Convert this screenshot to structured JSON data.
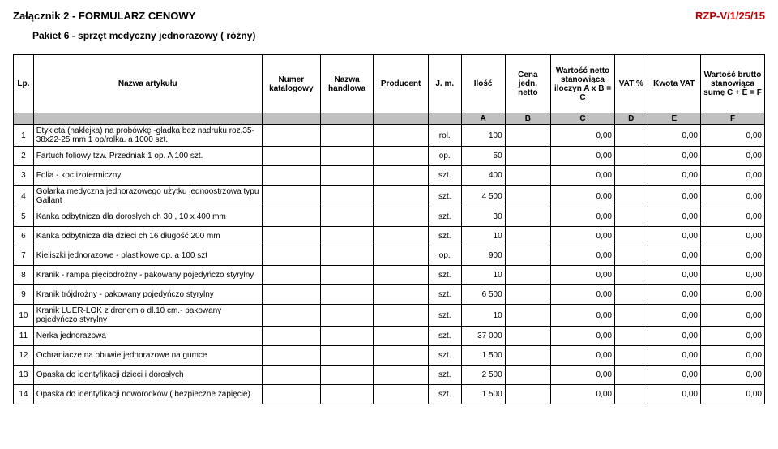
{
  "header": {
    "attachment": "Załącznik 2  -  FORMULARZ CENOWY",
    "ref": "RZP-V/1/25/15",
    "package": "Pakiet 6 - sprzęt medyczny jednorazowy ( różny)"
  },
  "table": {
    "columns": [
      "Lp.",
      "Nazwa artykułu",
      "Numer katalogowy",
      "Nazwa handlowa",
      "Producent",
      "J. m.",
      "Ilość",
      "Cena jedn. netto",
      "Wartość netto stanowiąca iloczyn A x B = C",
      "VAT %",
      "Kwota VAT",
      "Wartość brutto stanowiąca sumę C + E = F"
    ],
    "letter_row": [
      "",
      "",
      "",
      "",
      "",
      "",
      "A",
      "B",
      "C",
      "D",
      "E",
      "F"
    ],
    "rows": [
      {
        "lp": "1",
        "name": "Etykieta (naklejka) na probówkę -gładka bez nadruku roz.35-38x22-25 mm 1 op/rolka. a 1000 szt.",
        "jm": "rol.",
        "ilosc": "100",
        "wn": "0,00",
        "kvat": "0,00",
        "wb": "0,00"
      },
      {
        "lp": "2",
        "name": "Fartuch foliowy tzw. Przedniak 1 op. A 100 szt.",
        "jm": "op.",
        "ilosc": "50",
        "wn": "0,00",
        "kvat": "0,00",
        "wb": "0,00"
      },
      {
        "lp": "3",
        "name": "Folia - koc izotermiczny",
        "jm": "szt.",
        "ilosc": "400",
        "wn": "0,00",
        "kvat": "0,00",
        "wb": "0,00"
      },
      {
        "lp": "4",
        "name": "Golarka medyczna jednorazowego użytku jednoostrzowa typu Gallant",
        "jm": "szt.",
        "ilosc": "4 500",
        "wn": "0,00",
        "kvat": "0,00",
        "wb": "0,00"
      },
      {
        "lp": "5",
        "name": "Kanka odbytnicza dla dorosłych ch 30 , 10 x 400 mm",
        "jm": "szt.",
        "ilosc": "30",
        "wn": "0,00",
        "kvat": "0,00",
        "wb": "0,00"
      },
      {
        "lp": "6",
        "name": "Kanka odbytnicza dla dzieci ch 16 długość 200 mm",
        "jm": "szt.",
        "ilosc": "10",
        "wn": "0,00",
        "kvat": "0,00",
        "wb": "0,00"
      },
      {
        "lp": "7",
        "name": "Kieliszki jednorazowe - plastikowe op. a 100 szt",
        "jm": "op.",
        "ilosc": "900",
        "wn": "0,00",
        "kvat": "0,00",
        "wb": "0,00"
      },
      {
        "lp": "8",
        "name": "Kranik - rampa pięciodrożny - pakowany pojedyńczo styrylny",
        "jm": "szt.",
        "ilosc": "10",
        "wn": "0,00",
        "kvat": "0,00",
        "wb": "0,00"
      },
      {
        "lp": "9",
        "name": "Kranik trójdrożny - pakowany pojedyńczo styrylny",
        "jm": "szt.",
        "ilosc": "6 500",
        "wn": "0,00",
        "kvat": "0,00",
        "wb": "0,00"
      },
      {
        "lp": "10",
        "name": "Kranik LUER-LOK z drenem o dł.10 cm.- pakowany pojedyńczo styrylny",
        "jm": "szt.",
        "ilosc": "10",
        "wn": "0,00",
        "kvat": "0,00",
        "wb": "0,00"
      },
      {
        "lp": "11",
        "name": "Nerka jednorazowa",
        "jm": "szt.",
        "ilosc": "37 000",
        "wn": "0,00",
        "kvat": "0,00",
        "wb": "0,00"
      },
      {
        "lp": "12",
        "name": "Ochraniacze na obuwie jednorazowe na gumce",
        "jm": "szt.",
        "ilosc": "1 500",
        "wn": "0,00",
        "kvat": "0,00",
        "wb": "0,00"
      },
      {
        "lp": "13",
        "name": "Opaska do identyfikacji dzieci i dorosłych",
        "jm": "szt.",
        "ilosc": "2 500",
        "wn": "0,00",
        "kvat": "0,00",
        "wb": "0,00"
      },
      {
        "lp": "14",
        "name": "Opaska do identyfikacji noworodków ( bezpieczne zapięcie)",
        "jm": "szt.",
        "ilosc": "1 500",
        "wn": "0,00",
        "kvat": "0,00",
        "wb": "0,00"
      }
    ]
  },
  "colors": {
    "accent_red": "#c00000",
    "gray_fill": "#c0c0c0",
    "border": "#000000",
    "background": "#ffffff"
  }
}
